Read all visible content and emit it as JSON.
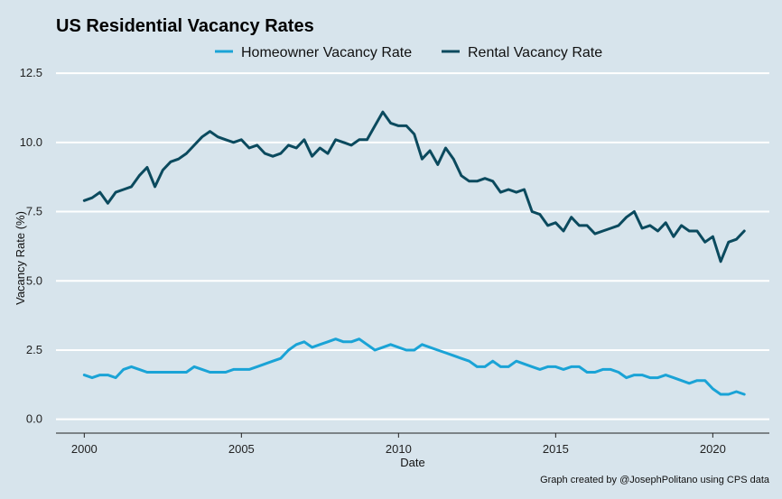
{
  "colors": {
    "background": "#d7e4ec",
    "homeowner": "#1aa3d6",
    "rental": "#0b4a5e",
    "grid": "#ffffff"
  },
  "chart_data": {
    "type": "line",
    "title": "US Residential Vacancy Rates",
    "xlabel": "Date",
    "ylabel": "Vacancy Rate (%)",
    "caption": "Graph created by @JosephPolitano using CPS data",
    "legend_position": "top",
    "grid": true,
    "xlim": [
      1999.1,
      2021.8
    ],
    "ylim": [
      -0.5,
      12.7
    ],
    "x_ticks": [
      2000,
      2005,
      2010,
      2015,
      2020
    ],
    "x_tick_labels": [
      "2000",
      "2005",
      "2010",
      "2015",
      "2020"
    ],
    "y_ticks": [
      0,
      2.5,
      5,
      7.5,
      10,
      12.5
    ],
    "y_tick_labels": [
      "0.0",
      "2.5",
      "5.0",
      "7.5",
      "10.0",
      "12.5"
    ],
    "series": [
      {
        "name": "Homeowner Vacancy Rate",
        "color": "#1aa3d6",
        "x": [
          2000.0,
          2000.25,
          2000.5,
          2000.75,
          2001.0,
          2001.25,
          2001.5,
          2001.75,
          2002.0,
          2002.25,
          2002.5,
          2002.75,
          2003.0,
          2003.25,
          2003.5,
          2003.75,
          2004.0,
          2004.25,
          2004.5,
          2004.75,
          2005.0,
          2005.25,
          2005.5,
          2005.75,
          2006.0,
          2006.25,
          2006.5,
          2006.75,
          2007.0,
          2007.25,
          2007.5,
          2007.75,
          2008.0,
          2008.25,
          2008.5,
          2008.75,
          2009.0,
          2009.25,
          2009.5,
          2009.75,
          2010.0,
          2010.25,
          2010.5,
          2010.75,
          2011.0,
          2011.25,
          2011.5,
          2011.75,
          2012.0,
          2012.25,
          2012.5,
          2012.75,
          2013.0,
          2013.25,
          2013.5,
          2013.75,
          2014.0,
          2014.25,
          2014.5,
          2014.75,
          2015.0,
          2015.25,
          2015.5,
          2015.75,
          2016.0,
          2016.25,
          2016.5,
          2016.75,
          2017.0,
          2017.25,
          2017.5,
          2017.75,
          2018.0,
          2018.25,
          2018.5,
          2018.75,
          2019.0,
          2019.25,
          2019.5,
          2019.75,
          2020.0,
          2020.25,
          2020.5,
          2020.75,
          2021.0
        ],
        "values": [
          1.6,
          1.5,
          1.6,
          1.6,
          1.5,
          1.8,
          1.9,
          1.8,
          1.7,
          1.7,
          1.7,
          1.7,
          1.7,
          1.7,
          1.9,
          1.8,
          1.7,
          1.7,
          1.7,
          1.8,
          1.8,
          1.8,
          1.9,
          2.0,
          2.1,
          2.2,
          2.5,
          2.7,
          2.8,
          2.6,
          2.7,
          2.8,
          2.9,
          2.8,
          2.8,
          2.9,
          2.7,
          2.5,
          2.6,
          2.7,
          2.6,
          2.5,
          2.5,
          2.7,
          2.6,
          2.5,
          2.4,
          2.3,
          2.2,
          2.1,
          1.9,
          1.9,
          2.1,
          1.9,
          1.9,
          2.1,
          2.0,
          1.9,
          1.8,
          1.9,
          1.9,
          1.8,
          1.9,
          1.9,
          1.7,
          1.7,
          1.8,
          1.8,
          1.7,
          1.5,
          1.6,
          1.6,
          1.5,
          1.5,
          1.6,
          1.5,
          1.4,
          1.3,
          1.4,
          1.4,
          1.1,
          0.9,
          0.9,
          1.0,
          0.9
        ]
      },
      {
        "name": "Rental Vacancy Rate",
        "color": "#0b4a5e",
        "x": [
          2000.0,
          2000.25,
          2000.5,
          2000.75,
          2001.0,
          2001.25,
          2001.5,
          2001.75,
          2002.0,
          2002.25,
          2002.5,
          2002.75,
          2003.0,
          2003.25,
          2003.5,
          2003.75,
          2004.0,
          2004.25,
          2004.5,
          2004.75,
          2005.0,
          2005.25,
          2005.5,
          2005.75,
          2006.0,
          2006.25,
          2006.5,
          2006.75,
          2007.0,
          2007.25,
          2007.5,
          2007.75,
          2008.0,
          2008.25,
          2008.5,
          2008.75,
          2009.0,
          2009.25,
          2009.5,
          2009.75,
          2010.0,
          2010.25,
          2010.5,
          2010.75,
          2011.0,
          2011.25,
          2011.5,
          2011.75,
          2012.0,
          2012.25,
          2012.5,
          2012.75,
          2013.0,
          2013.25,
          2013.5,
          2013.75,
          2014.0,
          2014.25,
          2014.5,
          2014.75,
          2015.0,
          2015.25,
          2015.5,
          2015.75,
          2016.0,
          2016.25,
          2016.5,
          2016.75,
          2017.0,
          2017.25,
          2017.5,
          2017.75,
          2018.0,
          2018.25,
          2018.5,
          2018.75,
          2019.0,
          2019.25,
          2019.5,
          2019.75,
          2020.0,
          2020.25,
          2020.5,
          2020.75,
          2021.0
        ],
        "values": [
          7.9,
          8.0,
          8.2,
          7.8,
          8.2,
          8.3,
          8.4,
          8.8,
          9.1,
          8.4,
          9.0,
          9.3,
          9.4,
          9.6,
          9.9,
          10.2,
          10.4,
          10.2,
          10.1,
          10.0,
          10.1,
          9.8,
          9.9,
          9.6,
          9.5,
          9.6,
          9.9,
          9.8,
          10.1,
          9.5,
          9.8,
          9.6,
          10.1,
          10.0,
          9.9,
          10.1,
          10.1,
          10.6,
          11.1,
          10.7,
          10.6,
          10.6,
          10.3,
          9.4,
          9.7,
          9.2,
          9.8,
          9.4,
          8.8,
          8.6,
          8.6,
          8.7,
          8.6,
          8.2,
          8.3,
          8.2,
          8.3,
          7.5,
          7.4,
          7.0,
          7.1,
          6.8,
          7.3,
          7.0,
          7.0,
          6.7,
          6.8,
          6.9,
          7.0,
          7.3,
          7.5,
          6.9,
          7.0,
          6.8,
          7.1,
          6.6,
          7.0,
          6.8,
          6.8,
          6.4,
          6.6,
          5.7,
          6.4,
          6.5,
          6.8
        ]
      }
    ]
  }
}
